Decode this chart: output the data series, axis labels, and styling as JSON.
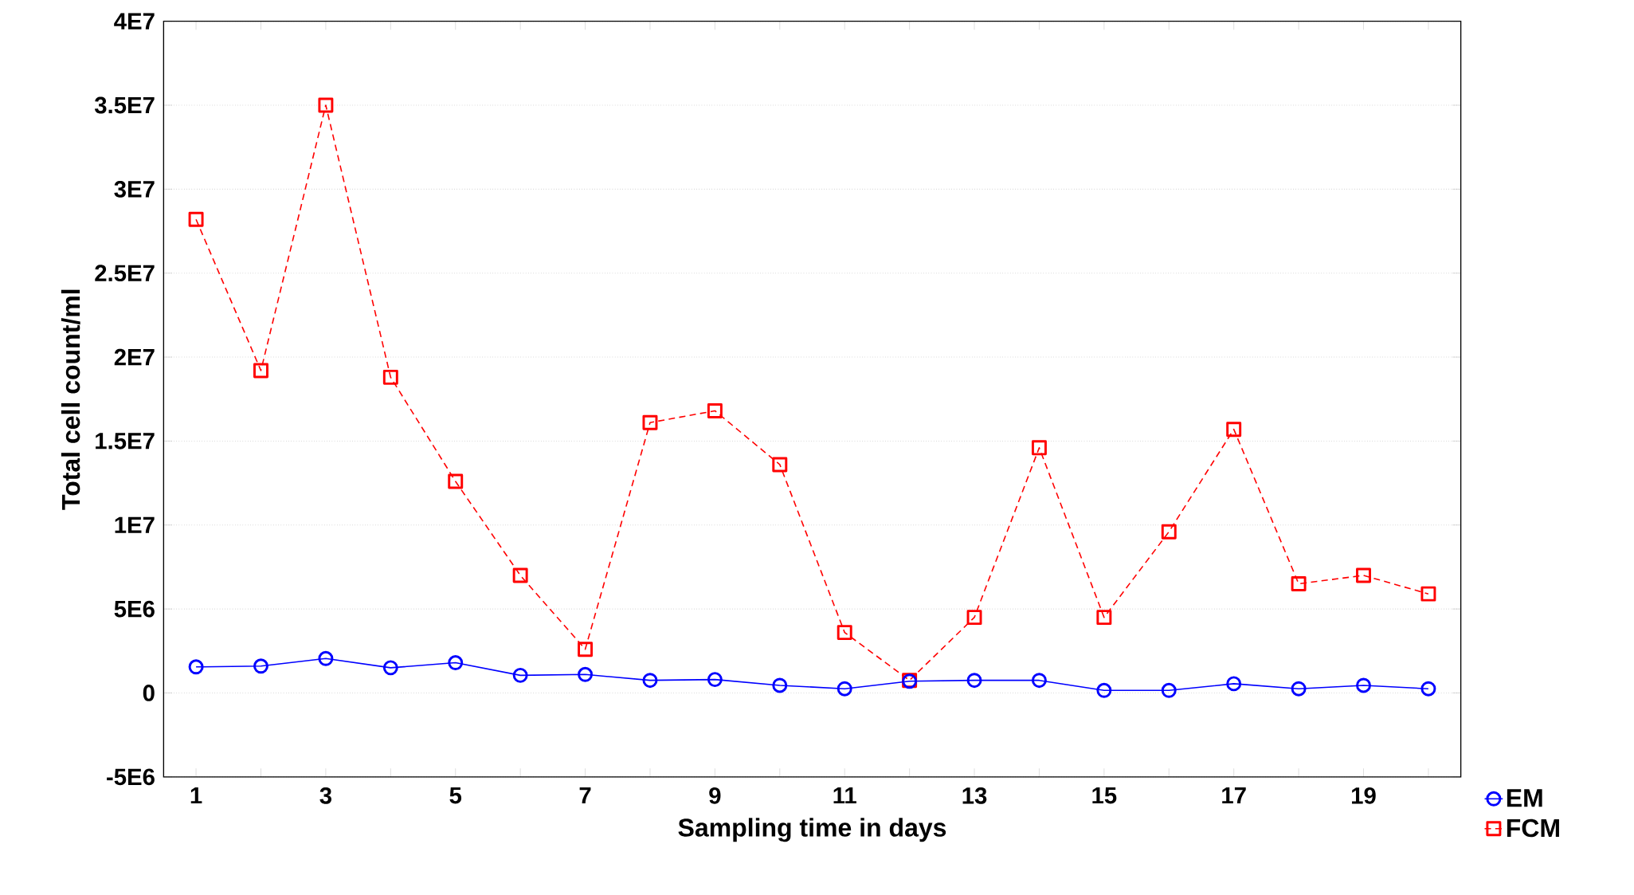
{
  "chart_data": {
    "type": "line",
    "xlabel": "Sampling time in days",
    "ylabel": "Total cell count/ml",
    "x": [
      1,
      2,
      3,
      4,
      5,
      6,
      7,
      8,
      9,
      10,
      11,
      12,
      13,
      14,
      15,
      16,
      17,
      18,
      19,
      20
    ],
    "series": [
      {
        "name": "EM",
        "color": "#0000ff",
        "marker": "circle",
        "line_style": "solid",
        "values": [
          1550000,
          1600000,
          2050000,
          1500000,
          1800000,
          1050000,
          1100000,
          750000,
          800000,
          450000,
          250000,
          700000,
          750000,
          750000,
          150000,
          150000,
          550000,
          250000,
          450000,
          250000
        ]
      },
      {
        "name": "FCM",
        "color": "#ff0000",
        "marker": "square",
        "line_style": "dashed",
        "values": [
          28200000,
          19200000,
          35000000,
          18800000,
          12600000,
          7000000,
          2600000,
          16100000,
          16800000,
          13600000,
          3600000,
          750000,
          4500000,
          14600000,
          4500000,
          9600000,
          15700000,
          6500000,
          7000000,
          5900000
        ]
      }
    ],
    "xlim": [
      0.5,
      20.5
    ],
    "ylim": [
      -5000000,
      40000000
    ],
    "xticks": [
      1,
      {
        "value": 2,
        "label": null
      },
      3,
      {
        "value": 4,
        "label": null
      },
      5,
      {
        "value": 6,
        "label": null
      },
      7,
      {
        "value": 8,
        "label": null
      },
      9,
      {
        "value": 10,
        "label": null
      },
      11,
      {
        "value": 12,
        "label": null
      },
      13,
      {
        "value": 14,
        "label": null
      },
      15,
      {
        "value": 16,
        "label": null
      },
      17,
      {
        "value": 18,
        "label": null
      },
      19,
      {
        "value": 20,
        "label": null
      }
    ],
    "yticks": [
      {
        "value": -5000000,
        "label": "-5E6"
      },
      0,
      {
        "value": 5000000,
        "label": "5E6"
      },
      {
        "value": 10000000,
        "label": "1E7"
      },
      {
        "value": 15000000,
        "label": "1.5E7"
      },
      {
        "value": 20000000,
        "label": "2E7"
      },
      {
        "value": 25000000,
        "label": "2.5E7"
      },
      {
        "value": 30000000,
        "label": "3E7"
      },
      {
        "value": 35000000,
        "label": "3.5E7"
      },
      {
        "value": 40000000,
        "label": "4E7"
      }
    ],
    "grid": "y",
    "legend": "right"
  }
}
